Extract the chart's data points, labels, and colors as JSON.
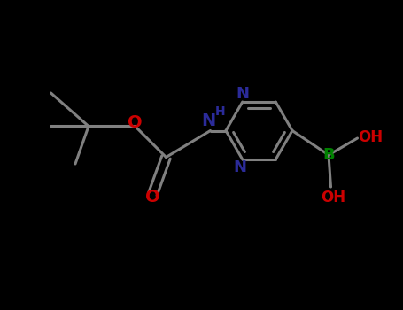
{
  "background_color": "#000000",
  "bond_color": "#808080",
  "N_color": "#2B2B9A",
  "O_color": "#CC0000",
  "B_color": "#008000",
  "bond_width": 2.2,
  "figsize": [
    4.55,
    3.5
  ],
  "dpi": 100,
  "xlim": [
    0,
    9.1
  ],
  "ylim": [
    0,
    7.0
  ]
}
